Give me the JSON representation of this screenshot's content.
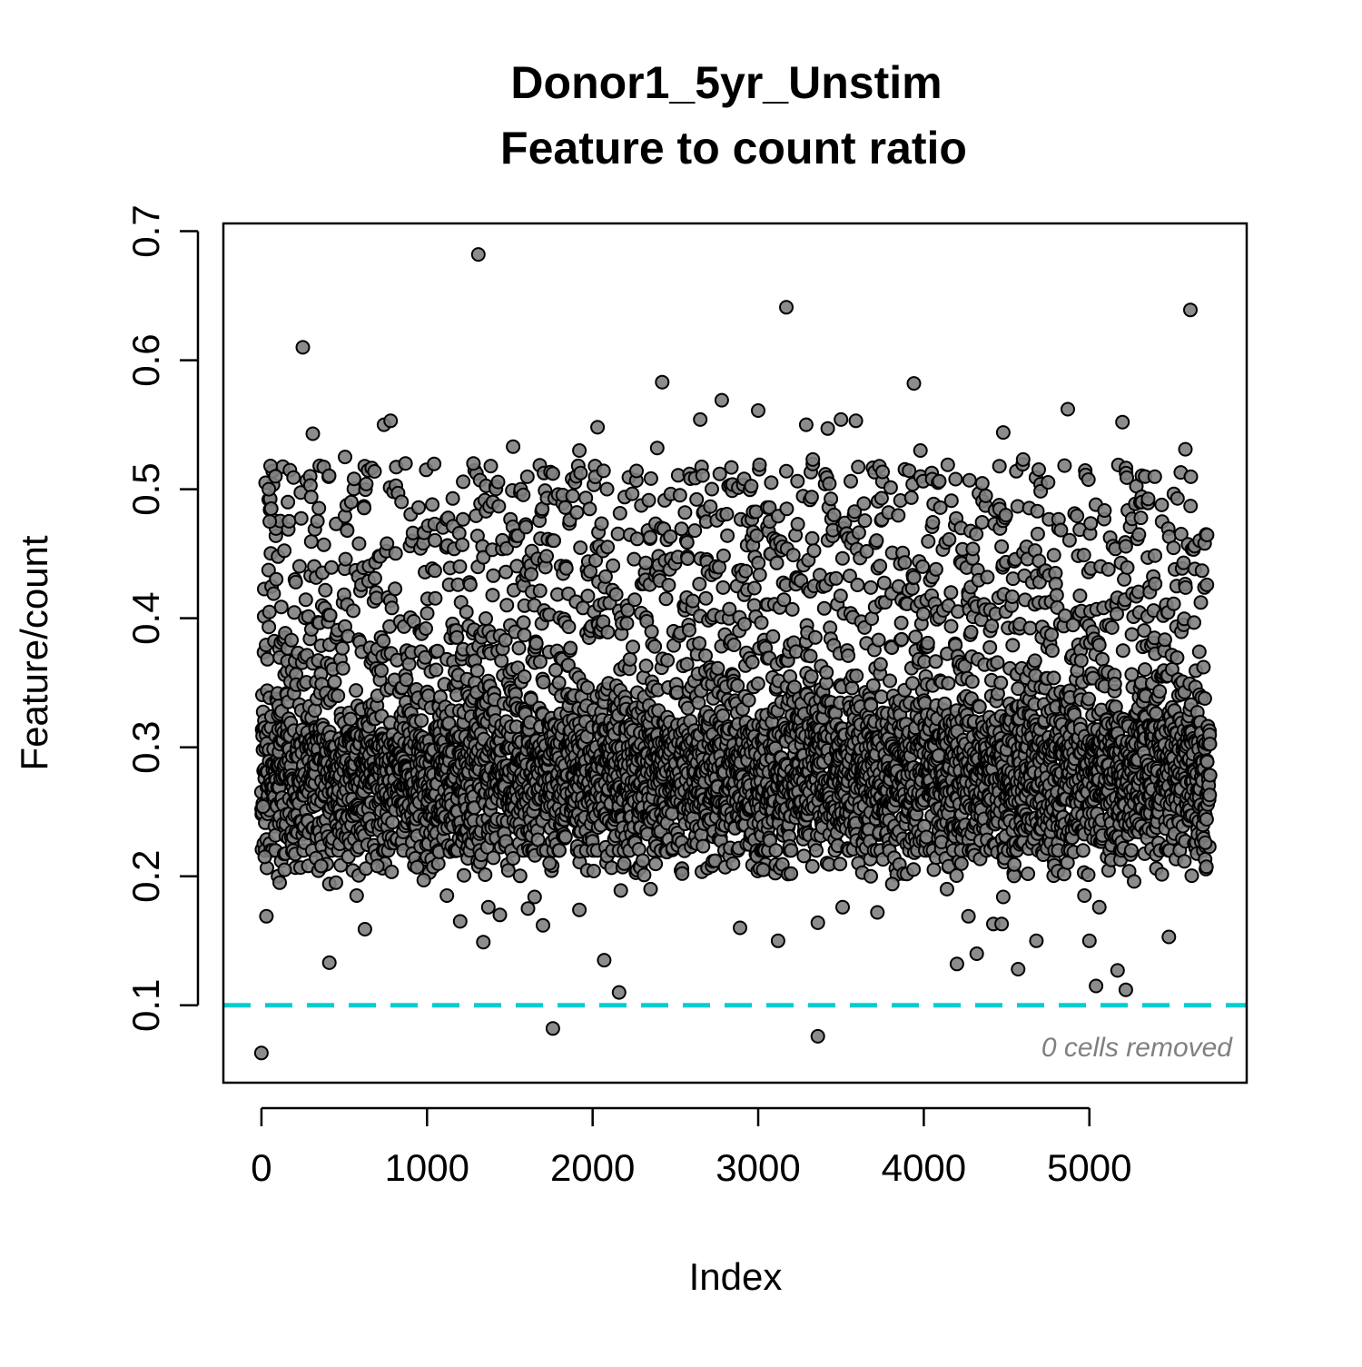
{
  "chart_data": {
    "type": "scatter",
    "title": "Donor1_5yr_Unstim",
    "subtitle": "Feature to count ratio",
    "xlabel": "Index",
    "ylabel": "Feature/count",
    "xlim": [
      -230,
      5950
    ],
    "ylim": [
      0.04,
      0.706
    ],
    "xticks": [
      0,
      1000,
      2000,
      3000,
      4000,
      5000
    ],
    "yticks": [
      0.1,
      0.2,
      0.3,
      0.4,
      0.5,
      0.6,
      0.7
    ],
    "xtick_labels": [
      "0",
      "1000",
      "2000",
      "3000",
      "4000",
      "5000"
    ],
    "ytick_labels": [
      "0.1",
      "0.2",
      "0.3",
      "0.4",
      "0.5",
      "0.6",
      "0.7"
    ],
    "n_points": 5730,
    "threshold": {
      "y": 0.1,
      "color": "#00CED1",
      "style": "dashed"
    },
    "annotation": "0 cells removed",
    "point_fill": "#808080",
    "point_stroke": "#000000",
    "grid": false,
    "legend": "none",
    "outliers": [
      {
        "x": 0,
        "y": 0.063
      },
      {
        "x": 10,
        "y": 0.254
      },
      {
        "x": 20,
        "y": 0.215
      },
      {
        "x": 25,
        "y": 0.505
      },
      {
        "x": 30,
        "y": 0.169
      },
      {
        "x": 45,
        "y": 0.5
      },
      {
        "x": 50,
        "y": 0.475
      },
      {
        "x": 55,
        "y": 0.518
      },
      {
        "x": 85,
        "y": 0.51
      },
      {
        "x": 100,
        "y": 0.2
      },
      {
        "x": 110,
        "y": 0.195
      },
      {
        "x": 140,
        "y": 0.205
      },
      {
        "x": 160,
        "y": 0.49
      },
      {
        "x": 250,
        "y": 0.61
      },
      {
        "x": 300,
        "y": 0.494
      },
      {
        "x": 310,
        "y": 0.543
      },
      {
        "x": 330,
        "y": 0.214
      },
      {
        "x": 360,
        "y": 0.208
      },
      {
        "x": 410,
        "y": 0.194
      },
      {
        "x": 410,
        "y": 0.133
      },
      {
        "x": 450,
        "y": 0.195
      },
      {
        "x": 505,
        "y": 0.525
      },
      {
        "x": 575,
        "y": 0.185
      },
      {
        "x": 625,
        "y": 0.159
      },
      {
        "x": 700,
        "y": 0.208
      },
      {
        "x": 740,
        "y": 0.55
      },
      {
        "x": 780,
        "y": 0.553
      },
      {
        "x": 870,
        "y": 0.52
      },
      {
        "x": 940,
        "y": 0.207
      },
      {
        "x": 980,
        "y": 0.197
      },
      {
        "x": 1120,
        "y": 0.185
      },
      {
        "x": 1200,
        "y": 0.165
      },
      {
        "x": 1280,
        "y": 0.52
      },
      {
        "x": 1310,
        "y": 0.682
      },
      {
        "x": 1340,
        "y": 0.149
      },
      {
        "x": 1370,
        "y": 0.176
      },
      {
        "x": 1440,
        "y": 0.17
      },
      {
        "x": 1520,
        "y": 0.533
      },
      {
        "x": 1610,
        "y": 0.175
      },
      {
        "x": 1650,
        "y": 0.184
      },
      {
        "x": 1700,
        "y": 0.162
      },
      {
        "x": 1740,
        "y": 0.21
      },
      {
        "x": 1760,
        "y": 0.082
      },
      {
        "x": 1920,
        "y": 0.53
      },
      {
        "x": 1920,
        "y": 0.174
      },
      {
        "x": 2030,
        "y": 0.548
      },
      {
        "x": 2070,
        "y": 0.135
      },
      {
        "x": 2160,
        "y": 0.11
      },
      {
        "x": 2170,
        "y": 0.189
      },
      {
        "x": 2350,
        "y": 0.19
      },
      {
        "x": 2390,
        "y": 0.532
      },
      {
        "x": 2420,
        "y": 0.583
      },
      {
        "x": 2650,
        "y": 0.554
      },
      {
        "x": 2780,
        "y": 0.569
      },
      {
        "x": 2890,
        "y": 0.16
      },
      {
        "x": 3000,
        "y": 0.561
      },
      {
        "x": 3010,
        "y": 0.206
      },
      {
        "x": 3030,
        "y": 0.205
      },
      {
        "x": 3120,
        "y": 0.15
      },
      {
        "x": 3170,
        "y": 0.641
      },
      {
        "x": 3170,
        "y": 0.514
      },
      {
        "x": 3290,
        "y": 0.55
      },
      {
        "x": 3330,
        "y": 0.523
      },
      {
        "x": 3360,
        "y": 0.164
      },
      {
        "x": 3360,
        "y": 0.076
      },
      {
        "x": 3420,
        "y": 0.547
      },
      {
        "x": 3500,
        "y": 0.554
      },
      {
        "x": 3510,
        "y": 0.176
      },
      {
        "x": 3590,
        "y": 0.553
      },
      {
        "x": 3680,
        "y": 0.2
      },
      {
        "x": 3720,
        "y": 0.172
      },
      {
        "x": 3810,
        "y": 0.194
      },
      {
        "x": 3940,
        "y": 0.582
      },
      {
        "x": 3980,
        "y": 0.53
      },
      {
        "x": 4140,
        "y": 0.19
      },
      {
        "x": 4200,
        "y": 0.132
      },
      {
        "x": 4270,
        "y": 0.169
      },
      {
        "x": 4320,
        "y": 0.14
      },
      {
        "x": 4420,
        "y": 0.163
      },
      {
        "x": 4470,
        "y": 0.163
      },
      {
        "x": 4480,
        "y": 0.184
      },
      {
        "x": 4480,
        "y": 0.544
      },
      {
        "x": 4570,
        "y": 0.128
      },
      {
        "x": 4600,
        "y": 0.523
      },
      {
        "x": 4680,
        "y": 0.15
      },
      {
        "x": 4870,
        "y": 0.562
      },
      {
        "x": 4970,
        "y": 0.185
      },
      {
        "x": 5000,
        "y": 0.15
      },
      {
        "x": 5040,
        "y": 0.115
      },
      {
        "x": 5060,
        "y": 0.176
      },
      {
        "x": 5170,
        "y": 0.127
      },
      {
        "x": 5200,
        "y": 0.552
      },
      {
        "x": 5220,
        "y": 0.112
      },
      {
        "x": 5240,
        "y": 0.204
      },
      {
        "x": 5270,
        "y": 0.196
      },
      {
        "x": 5480,
        "y": 0.153
      },
      {
        "x": 5580,
        "y": 0.531
      },
      {
        "x": 5610,
        "y": 0.639
      },
      {
        "x": 5700,
        "y": 0.226
      }
    ],
    "bulk_distribution": {
      "index_range": [
        0,
        5730
      ],
      "core_mean": 0.275,
      "core_sd": 0.028,
      "upper_min": 0.3,
      "upper_max": 0.52,
      "lower_min": 0.2,
      "lower_max": 0.245
    }
  }
}
